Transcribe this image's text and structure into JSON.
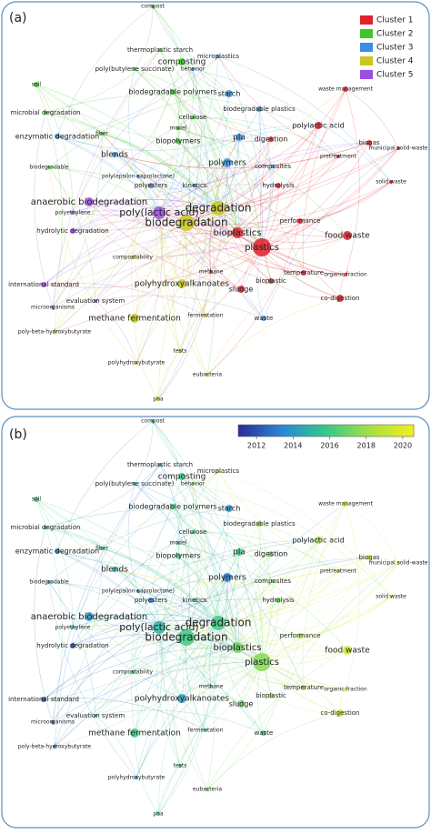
{
  "panels": [
    {
      "label": "(a)",
      "legend": [
        {
          "name": "Cluster 1",
          "color": "#e0202a"
        },
        {
          "name": "Cluster 2",
          "color": "#3cc828"
        },
        {
          "name": "Cluster 3",
          "color": "#3a8fe0"
        },
        {
          "name": "Cluster 4",
          "color": "#c8c81e"
        },
        {
          "name": "Cluster 5",
          "color": "#9b4fe0"
        }
      ]
    },
    {
      "label": "(b)",
      "colorbar": {
        "lim": [
          2011,
          2020.6
        ],
        "ticks": [
          2012,
          2014,
          2016,
          2018,
          2020
        ]
      }
    }
  ],
  "nodes": [
    "compost",
    "thermoplastic starch",
    "microplastics",
    "poly(butylene succinate)",
    "behavior",
    "composting",
    "waste management",
    "soil",
    "biodegradable polymers",
    "starch",
    "microbial degradation",
    "cellulose",
    "biodegradable plastics",
    "fiber",
    "model",
    "pla",
    "polylactic acid",
    "enzymatic degradation",
    "biopolymers",
    "digestion",
    "biogas",
    "blends",
    "municipal solid-waste",
    "polymers",
    "composites",
    "hydrolysis",
    "pretreatment",
    "biodegradable",
    "poly(epsilon-caprolactone)",
    "polyesters",
    "kinetics",
    "solid waste",
    "anaerobic biodegradation",
    "degradation",
    "poly(lactic acid)",
    "polyethylene",
    "biodegradation",
    "performance",
    "hydrolytic degradation",
    "bioplastics",
    "food waste",
    "plastics",
    "compostability",
    "methane",
    "temperature",
    "organic fraction",
    "international standard",
    "polyhydroxyalkanoates",
    "bioplastic",
    "sludge",
    "co-digestion",
    "evaluation system",
    "microorganisms",
    "methane fermentation",
    "fermentation",
    "waste",
    "poly-beta-hydroxybutyrate",
    "tests",
    "polyhydroxybutyrate",
    "eubacteria",
    "pha"
  ]
}
